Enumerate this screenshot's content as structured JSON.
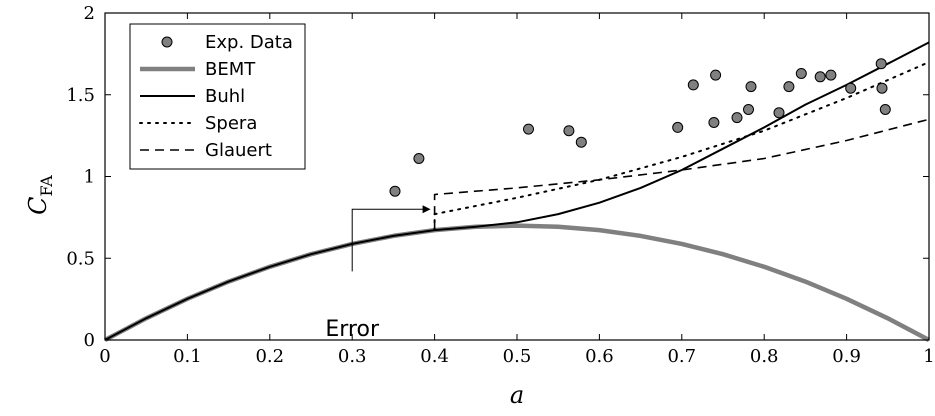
{
  "chart_data": {
    "type": "line",
    "xlabel": "a",
    "ylabel": "C",
    "ylabel_sub": "FA",
    "xlim": [
      0,
      1
    ],
    "ylim": [
      0,
      2
    ],
    "xticks": [
      "0",
      "0.1",
      "0.2",
      "0.3",
      "0.4",
      "0.5",
      "0.6",
      "0.7",
      "0.8",
      "0.9",
      "1"
    ],
    "xtick_values": [
      0,
      0.1,
      0.2,
      0.3,
      0.4,
      0.5,
      0.6,
      0.7,
      0.8,
      0.9,
      1
    ],
    "yticks": [
      "0",
      "0.5",
      "1",
      "1.5",
      "2"
    ],
    "ytick_values": [
      0,
      0.5,
      1,
      1.5,
      2
    ],
    "grid": false,
    "legend_position": "top-left",
    "series": [
      {
        "name": "Exp. Data",
        "kind": "scatter",
        "color": "#808080",
        "points": [
          [
            0.352,
            0.91
          ],
          [
            0.381,
            1.11
          ],
          [
            0.514,
            1.29
          ],
          [
            0.563,
            1.28
          ],
          [
            0.578,
            1.21
          ],
          [
            0.695,
            1.3
          ],
          [
            0.714,
            1.56
          ],
          [
            0.739,
            1.33
          ],
          [
            0.741,
            1.62
          ],
          [
            0.767,
            1.36
          ],
          [
            0.781,
            1.41
          ],
          [
            0.784,
            1.55
          ],
          [
            0.818,
            1.39
          ],
          [
            0.83,
            1.55
          ],
          [
            0.845,
            1.63
          ],
          [
            0.868,
            1.61
          ],
          [
            0.881,
            1.62
          ],
          [
            0.905,
            1.54
          ],
          [
            0.942,
            1.69
          ],
          [
            0.943,
            1.54
          ],
          [
            0.947,
            1.41
          ]
        ]
      },
      {
        "name": "BEMT",
        "kind": "line",
        "style": "thick",
        "color": "#808080",
        "x": [
          0,
          0.05,
          0.1,
          0.15,
          0.2,
          0.25,
          0.3,
          0.35,
          0.4,
          0.45,
          0.5,
          0.55,
          0.6,
          0.65,
          0.7,
          0.75,
          0.8,
          0.85,
          0.9,
          0.95,
          1
        ],
        "y": [
          0,
          0.171,
          0.324,
          0.459,
          0.576,
          0.675,
          0.756,
          0.819,
          0.864,
          0.891,
          0.9,
          0.891,
          0.864,
          0.819,
          0.756,
          0.675,
          0.576,
          0.459,
          0.324,
          0.171,
          0
        ],
        "y_display": [
          0,
          0.133,
          0.252,
          0.357,
          0.448,
          0.525,
          0.588,
          0.637,
          0.672,
          0.693,
          0.7,
          0.693,
          0.672,
          0.637,
          0.588,
          0.525,
          0.448,
          0.357,
          0.252,
          0.133,
          0
        ]
      },
      {
        "name": "Buhl",
        "kind": "line",
        "style": "solid",
        "color": "#000000",
        "x": [
          0,
          0.05,
          0.1,
          0.15,
          0.2,
          0.25,
          0.3,
          0.35,
          0.4,
          0.45,
          0.5,
          0.55,
          0.6,
          0.65,
          0.7,
          0.75,
          0.8,
          0.85,
          0.9,
          0.95,
          1
        ],
        "y": [
          0,
          0.133,
          0.252,
          0.357,
          0.448,
          0.525,
          0.588,
          0.637,
          0.672,
          0.693,
          0.72,
          0.77,
          0.84,
          0.93,
          1.04,
          1.17,
          1.3,
          1.44,
          1.56,
          1.69,
          1.82
        ]
      },
      {
        "name": "Spera",
        "kind": "line",
        "style": "dotted",
        "color": "#000000",
        "x": [
          0.4,
          0.4,
          0.5,
          0.6,
          0.7,
          0.8,
          0.9,
          1.0
        ],
        "y": [
          0.672,
          0.77,
          0.87,
          0.98,
          1.12,
          1.28,
          1.48,
          1.7
        ]
      },
      {
        "name": "Glauert",
        "kind": "line",
        "style": "dashed",
        "color": "#000000",
        "x": [
          0.4,
          0.4,
          0.5,
          0.6,
          0.7,
          0.8,
          0.9,
          1.0
        ],
        "y": [
          0.672,
          0.89,
          0.93,
          0.98,
          1.04,
          1.11,
          1.22,
          1.35
        ]
      }
    ],
    "annotations": [
      {
        "text": "Error",
        "target": [
          0.4,
          0.8
        ]
      }
    ]
  }
}
